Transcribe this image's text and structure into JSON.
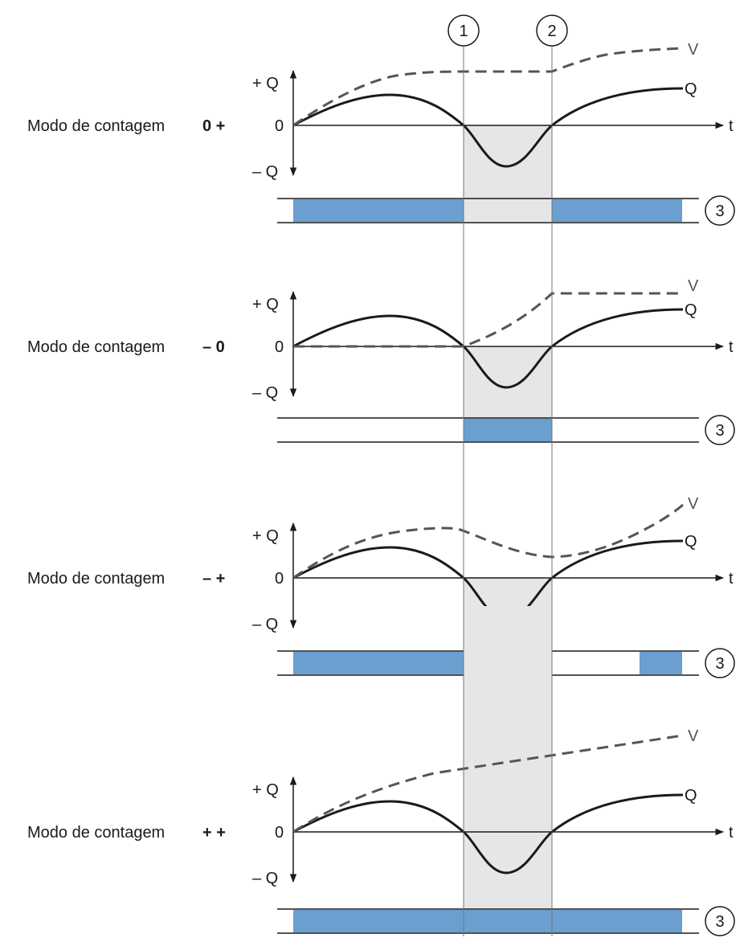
{
  "colors": {
    "signal_bar": "#6a9fcf",
    "shaded_window": "#e5e6e8",
    "q_curve": "#1a1a1a",
    "v_curve": "#555555",
    "axes": "#1a1a1a"
  },
  "markers": [
    "1",
    "2"
  ],
  "output_marker": "3",
  "labels": {
    "plus_q": "+ Q",
    "zero": "0",
    "minus_q": "– Q",
    "time": "t",
    "q": "Q",
    "v": "V"
  },
  "panels": [
    {
      "mode_label": "Modo de contagem",
      "mode_code": "0 +",
      "v_profile": "rise-hold-rise",
      "output": "outside-window"
    },
    {
      "mode_label": "Modo de contagem",
      "mode_code": "– 0",
      "v_profile": "flat-rise-hold",
      "output": "inside-window"
    },
    {
      "mode_label": "Modo de contagem",
      "mode_code": "– +",
      "v_profile": "rise-fall-rise",
      "output": "outside-window-then-late"
    },
    {
      "mode_label": "Modo de contagem",
      "mode_code": "+ +",
      "v_profile": "linear-rise",
      "output": "always-on"
    }
  ]
}
